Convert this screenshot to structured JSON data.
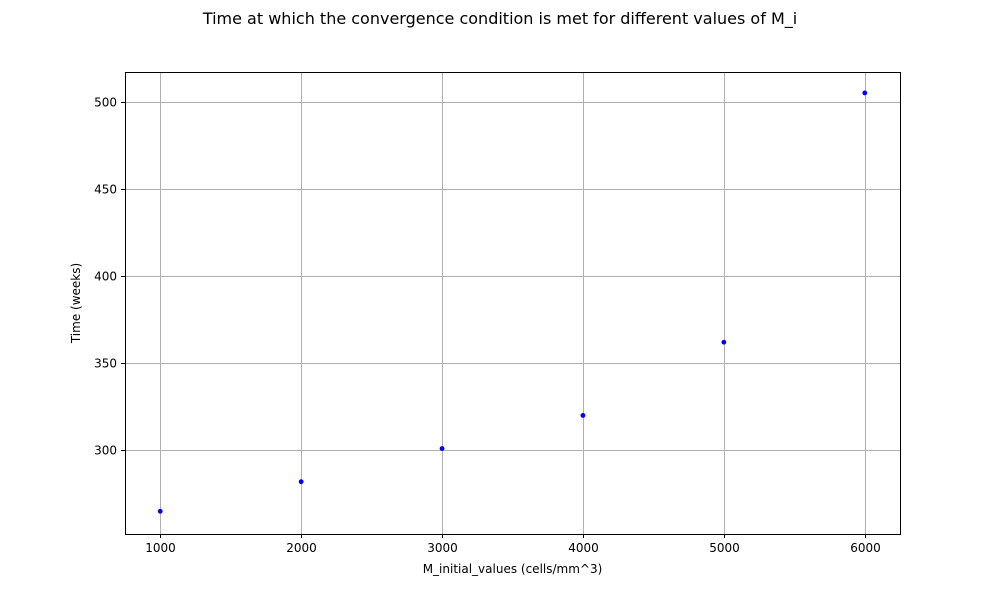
{
  "chart_data": {
    "type": "scatter",
    "title": "Time at which the convergence condition is met for different values of M_i",
    "xlabel": "M_initial_values (cells/mm^3)",
    "ylabel": "Time (weeks)",
    "x": [
      1000,
      2000,
      3000,
      4000,
      5000,
      6000
    ],
    "y": [
      265,
      282,
      301,
      320,
      362,
      505
    ],
    "xlim": [
      750,
      6250
    ],
    "ylim": [
      252,
      517
    ],
    "xticks": [
      "1000",
      "2000",
      "3000",
      "4000",
      "5000",
      "6000"
    ],
    "yticks": [
      "300",
      "350",
      "400",
      "450",
      "500"
    ],
    "grid": true,
    "marker_color": "#0000ff"
  }
}
